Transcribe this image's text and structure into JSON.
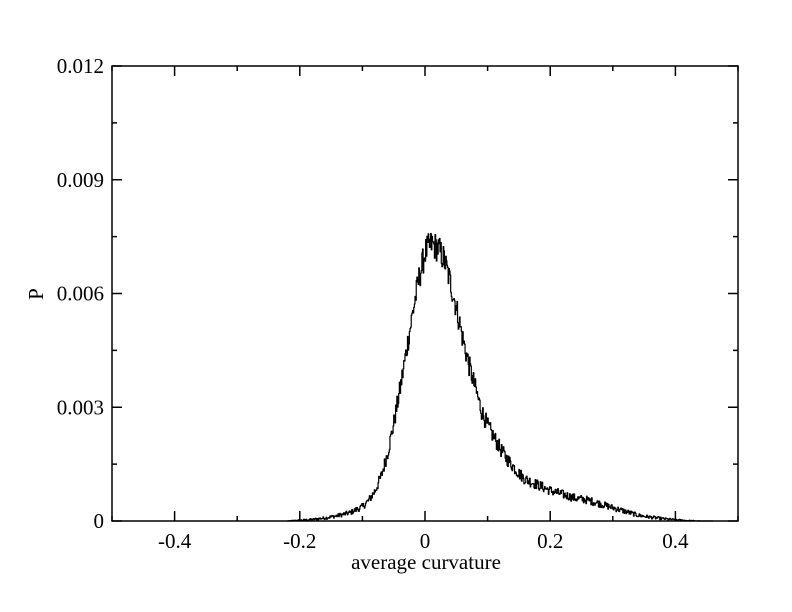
{
  "chart_data": {
    "type": "line",
    "title": "",
    "xlabel": "average curvature",
    "ylabel": "P",
    "xlim": [
      -0.5,
      0.5
    ],
    "ylim": [
      0,
      0.012
    ],
    "grid": false,
    "legend": "none",
    "x_ticks": [
      "-0.4",
      "-0.2",
      "0",
      "0.2",
      "0.4"
    ],
    "x_tick_values": [
      -0.4,
      -0.2,
      0,
      0.2,
      0.4
    ],
    "y_ticks": [
      "0",
      "0.003",
      "0.006",
      "0.009",
      "0.012"
    ],
    "y_tick_values": [
      0,
      0.003,
      0.006,
      0.009,
      0.012
    ],
    "colors": {
      "line": "#000000",
      "frame": "#000000",
      "background": "#ffffff"
    },
    "series": [
      {
        "values_note_free": true,
        "x": [
          -0.22,
          -0.2,
          -0.18,
          -0.16,
          -0.14,
          -0.12,
          -0.1,
          -0.09,
          -0.08,
          -0.07,
          -0.06,
          -0.05,
          -0.04,
          -0.03,
          -0.02,
          -0.01,
          0.0,
          0.01,
          0.02,
          0.03,
          0.04,
          0.05,
          0.06,
          0.07,
          0.08,
          0.09,
          0.1,
          0.11,
          0.12,
          0.13,
          0.14,
          0.15,
          0.16,
          0.18,
          0.2,
          0.22,
          0.24,
          0.26,
          0.28,
          0.3,
          0.32,
          0.34,
          0.36,
          0.38,
          0.4,
          0.42,
          0.44,
          0.46
        ],
        "y": [
          0.0,
          2e-05,
          4e-05,
          8e-05,
          0.00014,
          0.00022,
          0.00038,
          0.00055,
          0.0008,
          0.0012,
          0.0018,
          0.0026,
          0.0035,
          0.0045,
          0.0055,
          0.0064,
          0.0071,
          0.0073,
          0.0072,
          0.0069,
          0.0063,
          0.0056,
          0.0048,
          0.0041,
          0.0035,
          0.0029,
          0.0025,
          0.0022,
          0.0019,
          0.00165,
          0.00145,
          0.00125,
          0.0011,
          0.00095,
          0.0008,
          0.0007,
          0.0006,
          0.00055,
          0.00045,
          0.00035,
          0.00025,
          0.00015,
          0.0001,
          6e-05,
          3e-05,
          1e-05,
          0.0,
          0.0
        ]
      }
    ]
  }
}
